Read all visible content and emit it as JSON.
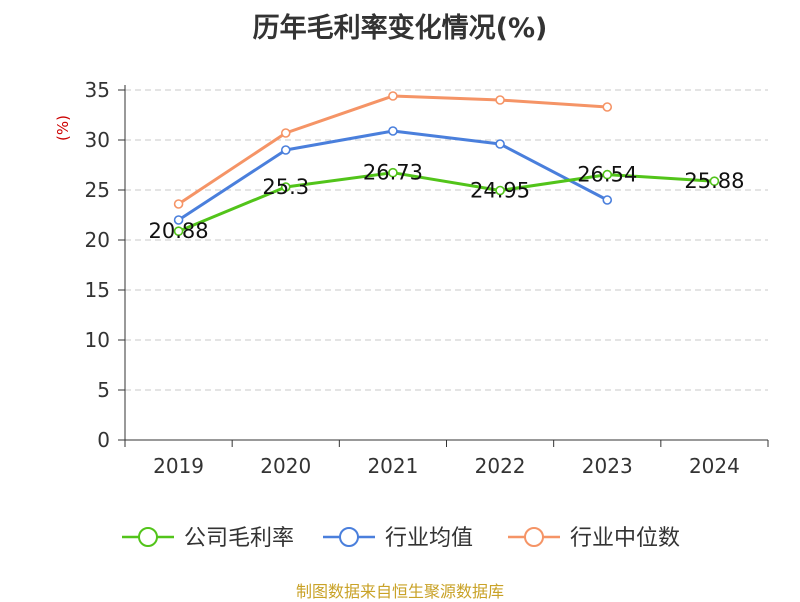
{
  "colors": {
    "company": "#52c41a",
    "industry_avg": "#4a7fdc",
    "industry_median": "#f59466",
    "ylabel": "#cc0000",
    "source": "#c9a227"
  },
  "source_note": "制图数据来自恒生聚源数据库",
  "chart_data": {
    "type": "line",
    "title": "历年毛利率变化情况(%)",
    "ylabel": "(%)",
    "xlabel": "",
    "categories": [
      "2019",
      "2020",
      "2021",
      "2022",
      "2023",
      "2024"
    ],
    "ylim": [
      0,
      35
    ],
    "yticks": [
      0,
      5,
      10,
      15,
      20,
      25,
      30,
      35
    ],
    "grid": "horizontal dashed",
    "legend_position": "bottom",
    "series": [
      {
        "name": "公司毛利率",
        "values": [
          20.88,
          25.3,
          26.73,
          24.95,
          26.54,
          25.88
        ],
        "labels": [
          "20.88",
          "25.3",
          "26.73",
          "24.95",
          "26.54",
          "25.88"
        ]
      },
      {
        "name": "行业均值",
        "values": [
          22.0,
          29.0,
          30.9,
          29.6,
          24.0,
          null
        ]
      },
      {
        "name": "行业中位数",
        "values": [
          23.6,
          30.7,
          34.4,
          34.0,
          33.3,
          null
        ]
      }
    ]
  }
}
